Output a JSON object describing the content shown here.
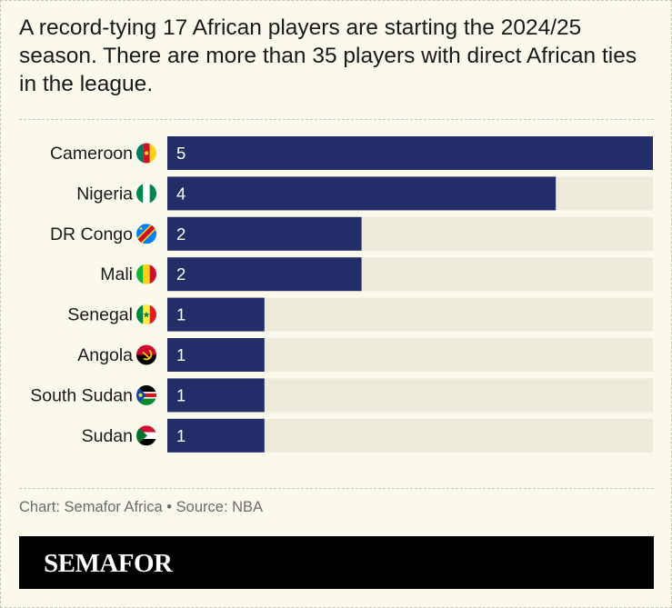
{
  "title": "A record-tying 17 African players are starting the 2024/25 season. There are more than 35 players with direct African ties in the league.",
  "source": "Chart: Semafor Africa • Source: NBA",
  "brand": "SEMAFOR",
  "colors": {
    "bar": "#232d68",
    "track": "#efebdc",
    "background": "#fbf8ec"
  },
  "chart_data": {
    "type": "bar",
    "orientation": "horizontal",
    "title": "A record-tying 17 African players are starting the 2024/25 season. There are more than 35 players with direct African ties in the league.",
    "xlabel": "",
    "ylabel": "",
    "xlim": [
      0,
      5
    ],
    "categories": [
      "Cameroon",
      "Nigeria",
      "DR Congo",
      "Mali",
      "Senegal",
      "Angola",
      "South Sudan",
      "Sudan"
    ],
    "values": [
      5,
      4,
      2,
      2,
      1,
      1,
      1,
      1
    ],
    "flags": [
      "cameroon-flag-icon",
      "nigeria-flag-icon",
      "dr-congo-flag-icon",
      "mali-flag-icon",
      "senegal-flag-icon",
      "angola-flag-icon",
      "south-sudan-flag-icon",
      "sudan-flag-icon"
    ]
  }
}
